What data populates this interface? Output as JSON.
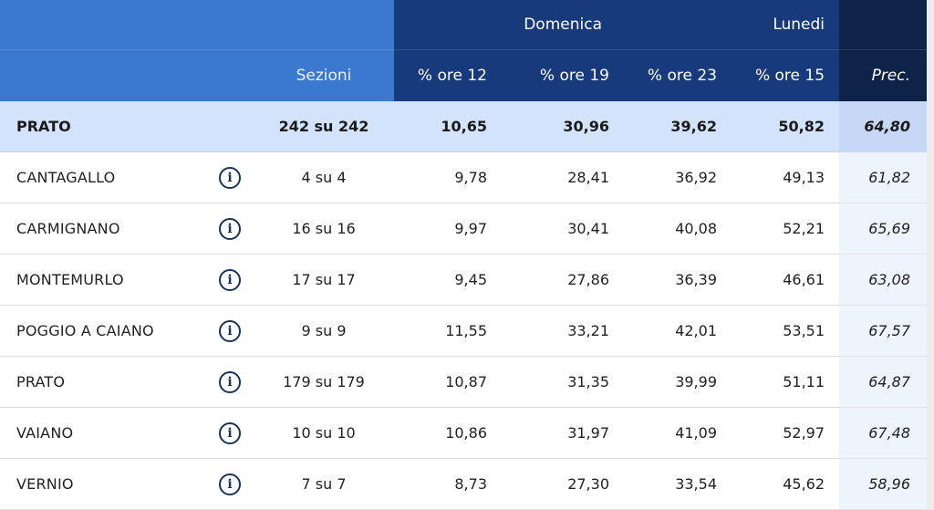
{
  "header": {
    "group_domenica": "Domenica",
    "group_lunedi": "Lunedi",
    "col_sezioni": "Sezioni",
    "col_ore12": "% ore 12",
    "col_ore19": "% ore 19",
    "col_ore23": "% ore 23",
    "col_ore15": "% ore 15",
    "col_prec": "Prec."
  },
  "total": {
    "name": "PRATO",
    "sezioni": "242 su 242",
    "ore12": "10,65",
    "ore19": "30,96",
    "ore23": "39,62",
    "ore15": "50,82",
    "prec": "64,80"
  },
  "rows": [
    {
      "name": "CANTAGALLO",
      "sezioni": "4 su 4",
      "ore12": "9,78",
      "ore19": "28,41",
      "ore23": "36,92",
      "ore15": "49,13",
      "prec": "61,82"
    },
    {
      "name": "CARMIGNANO",
      "sezioni": "16 su 16",
      "ore12": "9,97",
      "ore19": "30,41",
      "ore23": "40,08",
      "ore15": "52,21",
      "prec": "65,69"
    },
    {
      "name": "MONTEMURLO",
      "sezioni": "17 su 17",
      "ore12": "9,45",
      "ore19": "27,86",
      "ore23": "36,39",
      "ore15": "46,61",
      "prec": "63,08"
    },
    {
      "name": "POGGIO A CAIANO",
      "sezioni": "9 su 9",
      "ore12": "11,55",
      "ore19": "33,21",
      "ore23": "42,01",
      "ore15": "53,51",
      "prec": "67,57"
    },
    {
      "name": "PRATO",
      "sezioni": "179 su 179",
      "ore12": "10,87",
      "ore19": "31,35",
      "ore23": "39,99",
      "ore15": "51,11",
      "prec": "64,87"
    },
    {
      "name": "VAIANO",
      "sezioni": "10 su 10",
      "ore12": "10,86",
      "ore19": "31,97",
      "ore23": "41,09",
      "ore15": "52,97",
      "prec": "67,48"
    },
    {
      "name": "VERNIO",
      "sezioni": "7 su 7",
      "ore12": "8,73",
      "ore19": "27,30",
      "ore23": "33,54",
      "ore15": "45,62",
      "prec": "58,96"
    }
  ],
  "icons": {
    "row_info": "info-icon",
    "info_glyph": "i"
  },
  "colors": {
    "header_blue": "#3b78cf",
    "header_dark": "#173a7d",
    "header_prec": "#0d2347",
    "total_bg": "#d3e3fb",
    "prec_col_bg": "#eef4fd"
  }
}
